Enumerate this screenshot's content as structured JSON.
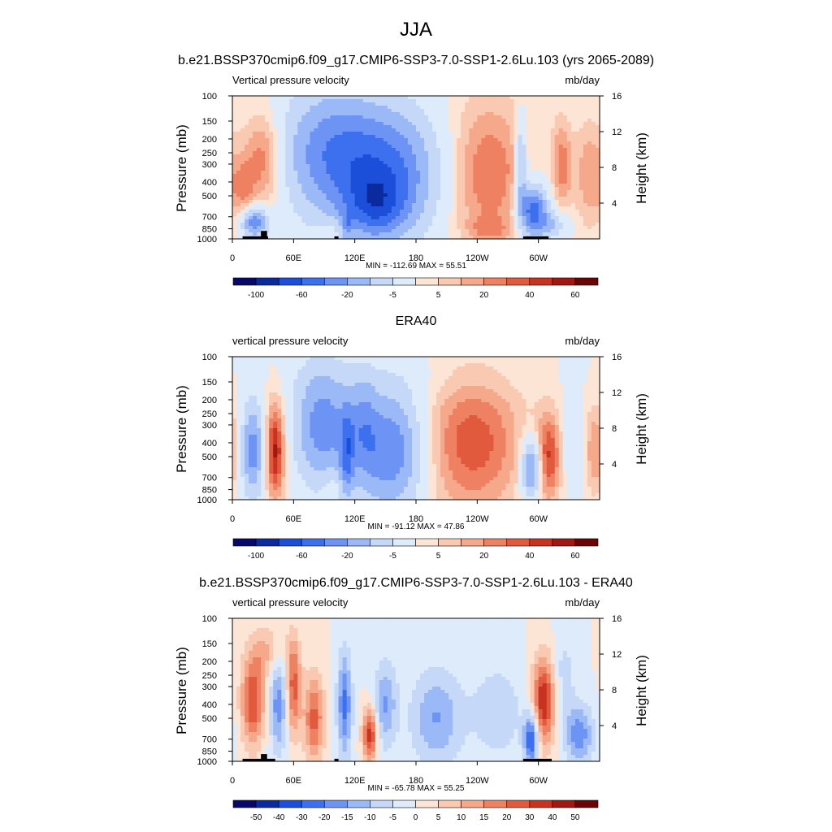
{
  "figure": {
    "title": "JJA",
    "subtitle": "b.e21.BSSP370cmip6.f09_g17.CMIP6-SSP3-7.0-SSP1-2.6Lu.103 (yrs 2065-2089)"
  },
  "chart_data": [
    {
      "type": "heatmap",
      "title": "",
      "left_label": "Vertical pressure velocity",
      "right_label": "mb/day",
      "ylabel": "Pressure (mb)",
      "y2label": "Height (km)",
      "x_ticks": [
        "0",
        "60E",
        "120E",
        "180",
        "120W",
        "60W"
      ],
      "x_tick_lons": [
        0,
        60,
        120,
        180,
        240,
        300
      ],
      "xlim": [
        0,
        360
      ],
      "y_ticks": [
        "100",
        "150",
        "200",
        "250",
        "300",
        "400",
        "500",
        "700",
        "850",
        "1000"
      ],
      "y_tick_values": [
        100,
        150,
        200,
        250,
        300,
        400,
        500,
        700,
        850,
        1000
      ],
      "ylim": [
        1000,
        100
      ],
      "y_scale": "log",
      "y2_ticks": [
        "4",
        "8",
        "12",
        "16"
      ],
      "y2_tick_values": [
        4,
        8,
        12,
        16
      ],
      "stats": "MIN = -112.69  MAX =  55.51",
      "min": -112.69,
      "max": 55.51,
      "colorbar_ticks": [
        "-100",
        "-60",
        "-20",
        "-5",
        "5",
        "20",
        "40",
        "60"
      ],
      "colorbar_tick_boundaries": [
        1,
        3,
        5,
        7,
        9,
        11,
        13,
        15
      ],
      "colors": [
        "#08086b",
        "#0b2a9e",
        "#1c4fd9",
        "#3c70ee",
        "#6d94f5",
        "#9bb9f7",
        "#c5d8f8",
        "#ddebfb",
        "#fde5d6",
        "#f9c9b2",
        "#f5a88a",
        "#ef8163",
        "#e25a3e",
        "#c8331f",
        "#a0180f",
        "#6b0505"
      ],
      "field": [
        {
          "x": 30,
          "p": 280,
          "sx": 14,
          "sy": 0.55,
          "v": 30
        },
        {
          "x": 10,
          "p": 450,
          "sx": 8,
          "sy": 0.35,
          "v": 18
        },
        {
          "x": 22,
          "p": 770,
          "sx": 9,
          "sy": 0.17,
          "v": -55
        },
        {
          "x": 95,
          "p": 250,
          "sx": 35,
          "sy": 0.75,
          "v": -48
        },
        {
          "x": 155,
          "p": 350,
          "sx": 35,
          "sy": 0.75,
          "v": -55
        },
        {
          "x": 140,
          "p": 600,
          "sx": 20,
          "sy": 0.35,
          "v": -35
        },
        {
          "x": 100,
          "p": 850,
          "sx": 10,
          "sy": 0.12,
          "v": 10
        },
        {
          "x": 112,
          "p": 800,
          "sx": 4,
          "sy": 0.15,
          "v": -25
        },
        {
          "x": 250,
          "p": 350,
          "sx": 28,
          "sy": 0.85,
          "v": 28
        },
        {
          "x": 252,
          "p": 850,
          "sx": 15,
          "sy": 0.14,
          "v": 12
        },
        {
          "x": 295,
          "p": 640,
          "sx": 10,
          "sy": 0.3,
          "v": -70
        },
        {
          "x": 283,
          "p": 300,
          "sx": 4,
          "sy": 0.5,
          "v": -40
        },
        {
          "x": 323,
          "p": 300,
          "sx": 7,
          "sy": 0.5,
          "v": 25
        },
        {
          "x": 350,
          "p": 350,
          "sx": 10,
          "sy": 0.6,
          "v": 20
        },
        {
          "x": 315,
          "p": 800,
          "sx": 10,
          "sy": 0.15,
          "v": -25
        }
      ],
      "topography": [
        [
          10,
          35,
          960
        ],
        [
          28,
          34,
          880
        ],
        [
          100,
          104,
          960
        ],
        [
          285,
          310,
          960
        ]
      ]
    },
    {
      "type": "heatmap",
      "title": "ERA40",
      "left_label": "vertical pressure velocity",
      "right_label": "mb/day",
      "ylabel": "Pressure (mb)",
      "y2label": "Height (km)",
      "x_ticks": [
        "0",
        "60E",
        "120E",
        "180",
        "120W",
        "60W"
      ],
      "x_tick_lons": [
        0,
        60,
        120,
        180,
        240,
        300
      ],
      "xlim": [
        0,
        360
      ],
      "y_ticks": [
        "100",
        "150",
        "200",
        "250",
        "300",
        "400",
        "500",
        "700",
        "850",
        "1000"
      ],
      "y_tick_values": [
        100,
        150,
        200,
        250,
        300,
        400,
        500,
        700,
        850,
        1000
      ],
      "ylim": [
        1000,
        100
      ],
      "y_scale": "log",
      "y2_ticks": [
        "4",
        "8",
        "12",
        "16"
      ],
      "y2_tick_values": [
        4,
        8,
        12,
        16
      ],
      "stats": "MIN = -91.12  MAX =  47.86",
      "min": -91.12,
      "max": 47.86,
      "colorbar_ticks": [
        "-100",
        "-60",
        "-20",
        "-5",
        "5",
        "20",
        "40",
        "60"
      ],
      "colorbar_tick_boundaries": [
        1,
        3,
        5,
        7,
        9,
        11,
        13,
        15
      ],
      "colors": [
        "#08086b",
        "#0b2a9e",
        "#1c4fd9",
        "#3c70ee",
        "#6d94f5",
        "#9bb9f7",
        "#c5d8f8",
        "#ddebfb",
        "#fde5d6",
        "#f9c9b2",
        "#f5a88a",
        "#ef8163",
        "#e25a3e",
        "#c8331f",
        "#a0180f",
        "#6b0505"
      ],
      "field": [
        {
          "x": 20,
          "p": 450,
          "sx": 8,
          "sy": 0.55,
          "v": -40
        },
        {
          "x": 42,
          "p": 450,
          "sx": 7,
          "sy": 0.55,
          "v": 40
        },
        {
          "x": 88,
          "p": 300,
          "sx": 20,
          "sy": 0.7,
          "v": -40
        },
        {
          "x": 112,
          "p": 500,
          "sx": 5,
          "sy": 0.5,
          "v": -30
        },
        {
          "x": 155,
          "p": 450,
          "sx": 24,
          "sy": 0.7,
          "v": -45
        },
        {
          "x": 128,
          "p": 300,
          "sx": 10,
          "sy": 0.6,
          "v": -20
        },
        {
          "x": 235,
          "p": 400,
          "sx": 35,
          "sy": 0.8,
          "v": 28
        },
        {
          "x": 293,
          "p": 600,
          "sx": 7,
          "sy": 0.35,
          "v": -45
        },
        {
          "x": 310,
          "p": 500,
          "sx": 9,
          "sy": 0.5,
          "v": 30
        },
        {
          "x": 335,
          "p": 450,
          "sx": 10,
          "sy": 0.5,
          "v": -12
        },
        {
          "x": 355,
          "p": 450,
          "sx": 8,
          "sy": 0.5,
          "v": 20
        },
        {
          "x": 100,
          "p": 800,
          "sx": 8,
          "sy": 0.2,
          "v": 8
        },
        {
          "x": 180,
          "p": 140,
          "sx": 90,
          "sy": 0.25,
          "v": -3
        }
      ],
      "topography": []
    },
    {
      "type": "heatmap",
      "title": "b.e21.BSSP370cmip6.f09_g17.CMIP6-SSP3-7.0-SSP1-2.6Lu.103 - ERA40",
      "left_label": "vertical pressure velocity",
      "right_label": "mb/day",
      "ylabel": "Pressure (mb)",
      "y2label": "Height (km)",
      "x_ticks": [
        "0",
        "60E",
        "120E",
        "180",
        "120W",
        "60W"
      ],
      "x_tick_lons": [
        0,
        60,
        120,
        180,
        240,
        300
      ],
      "xlim": [
        0,
        360
      ],
      "y_ticks": [
        "100",
        "150",
        "200",
        "250",
        "300",
        "400",
        "500",
        "700",
        "850",
        "1000"
      ],
      "y_tick_values": [
        100,
        150,
        200,
        250,
        300,
        400,
        500,
        700,
        850,
        1000
      ],
      "ylim": [
        1000,
        100
      ],
      "y_scale": "log",
      "y2_ticks": [
        "4",
        "8",
        "12",
        "16"
      ],
      "y2_tick_values": [
        4,
        8,
        12,
        16
      ],
      "stats": "MIN = -65.78  MAX =  55.25",
      "min": -65.78,
      "max": 55.25,
      "colorbar_ticks": [
        "-50",
        "-40",
        "-30",
        "-20",
        "-15",
        "-10",
        "-5",
        "0",
        "5",
        "10",
        "15",
        "20",
        "30",
        "40",
        "50"
      ],
      "colorbar_tick_boundaries": [
        1,
        2,
        3,
        4,
        5,
        6,
        7,
        8,
        9,
        10,
        11,
        12,
        13,
        14,
        15
      ],
      "colors": [
        "#08086b",
        "#0b2a9e",
        "#1c4fd9",
        "#3c70ee",
        "#6d94f5",
        "#9bb9f7",
        "#c5d8f8",
        "#ddebfb",
        "#fde5d6",
        "#f9c9b2",
        "#f5a88a",
        "#ef8163",
        "#e25a3e",
        "#c8331f",
        "#a0180f",
        "#6b0505"
      ],
      "field": [
        {
          "x": 20,
          "p": 380,
          "sx": 8,
          "sy": 0.5,
          "v": 35
        },
        {
          "x": 45,
          "p": 400,
          "sx": 6,
          "sy": 0.55,
          "v": -30
        },
        {
          "x": 60,
          "p": 300,
          "sx": 5,
          "sy": 0.55,
          "v": 32
        },
        {
          "x": 80,
          "p": 500,
          "sx": 7,
          "sy": 0.5,
          "v": 30
        },
        {
          "x": 110,
          "p": 400,
          "sx": 5,
          "sy": 0.6,
          "v": -35
        },
        {
          "x": 135,
          "p": 650,
          "sx": 5,
          "sy": 0.3,
          "v": 40
        },
        {
          "x": 150,
          "p": 400,
          "sx": 8,
          "sy": 0.5,
          "v": -25
        },
        {
          "x": 200,
          "p": 500,
          "sx": 18,
          "sy": 0.55,
          "v": -25
        },
        {
          "x": 260,
          "p": 450,
          "sx": 18,
          "sy": 0.55,
          "v": -15
        },
        {
          "x": 293,
          "p": 700,
          "sx": 5,
          "sy": 0.3,
          "v": -45
        },
        {
          "x": 305,
          "p": 380,
          "sx": 8,
          "sy": 0.5,
          "v": 42
        },
        {
          "x": 340,
          "p": 650,
          "sx": 10,
          "sy": 0.35,
          "v": -30
        },
        {
          "x": 325,
          "p": 250,
          "sx": 8,
          "sy": 0.5,
          "v": -12
        },
        {
          "x": 35,
          "p": 170,
          "sx": 12,
          "sy": 0.3,
          "v": 15
        }
      ],
      "topography": [
        [
          10,
          42,
          960
        ],
        [
          28,
          34,
          890
        ],
        [
          100,
          104,
          960
        ],
        [
          285,
          313,
          960
        ]
      ]
    }
  ]
}
